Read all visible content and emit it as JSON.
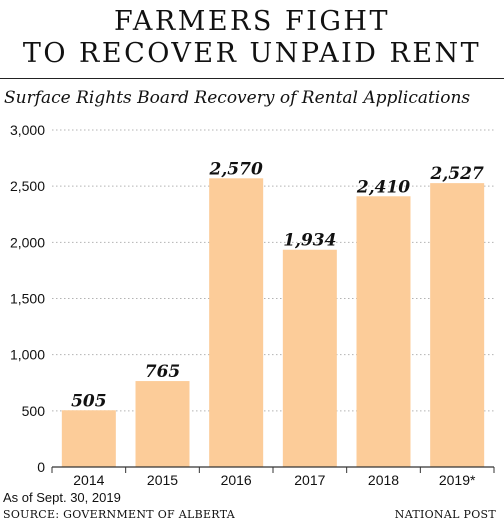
{
  "header": {
    "title_line1": "FARMERS FIGHT",
    "title_line2": "TO RECOVER UNPAID RENT",
    "subtitle": "Surface Rights Board Recovery of Rental Applications"
  },
  "footer": {
    "note": "As of Sept. 30, 2019",
    "source": "SOURCE: GOVERNMENT OF ALBERTA",
    "credit": "NATIONAL POST"
  },
  "colors": {
    "bar": "#FCCC99",
    "grid": "#b3b3b3",
    "text": "#111111"
  },
  "chart_data": {
    "type": "bar",
    "title": "",
    "xlabel": "",
    "ylabel": "",
    "categories": [
      "2014",
      "2015",
      "2016",
      "2017",
      "2018",
      "2019*"
    ],
    "values": [
      505,
      765,
      2570,
      1934,
      2410,
      2527
    ],
    "value_labels": [
      "505",
      "765",
      "2,570",
      "1,934",
      "2,410",
      "2,527"
    ],
    "ylim": [
      0,
      3000
    ],
    "yticks": [
      0,
      500,
      1000,
      1500,
      2000,
      2500,
      3000
    ],
    "ytick_labels": [
      "0",
      "500",
      "1,000",
      "1,500",
      "2,000",
      "2,500",
      "3,000"
    ],
    "grid": true,
    "legend": "none"
  }
}
